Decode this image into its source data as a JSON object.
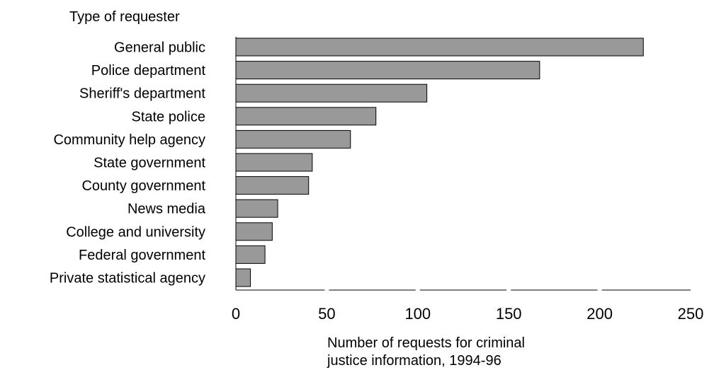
{
  "chart_data": {
    "type": "bar",
    "orientation": "horizontal",
    "title": "",
    "ylabel": "Type of requester",
    "xlabel_lines": [
      "Number of requests for criminal",
      "justice information, 1994-96"
    ],
    "categories": [
      "General public",
      "Police department",
      "Sheriff's department",
      "State police",
      "Community help agency",
      "State government",
      "County government",
      "News media",
      "College and university",
      "Federal government",
      "Private statistical agency"
    ],
    "values": [
      224,
      167,
      105,
      77,
      63,
      42,
      40,
      23,
      20,
      16,
      8
    ],
    "xlim": [
      0,
      250
    ],
    "xticks": [
      0,
      50,
      100,
      150,
      200,
      250
    ],
    "bar_color": "#999999",
    "bar_edge_color": "#000000",
    "grid": false,
    "legend": "none"
  }
}
